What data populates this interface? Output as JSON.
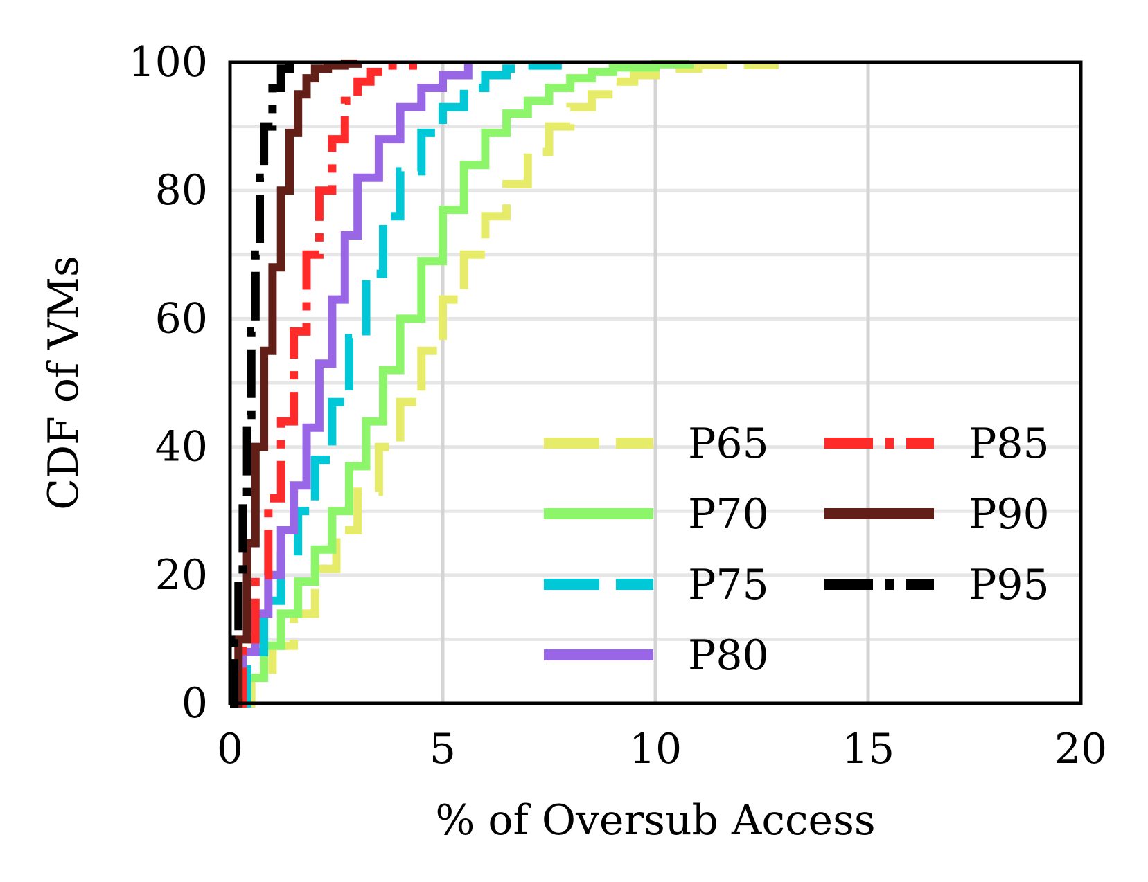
{
  "chart_data": {
    "type": "line",
    "title": "",
    "xlabel": "% of Oversub Access",
    "ylabel": "CDF of VMs",
    "xlim": [
      0,
      20
    ],
    "ylim": [
      0,
      100
    ],
    "xticks": [
      0,
      5,
      10,
      15,
      20
    ],
    "yticks": [
      0,
      20,
      40,
      60,
      80,
      100
    ],
    "x_grid": [
      5,
      10,
      15
    ],
    "y_grid": [
      10,
      20,
      30,
      40,
      50,
      60,
      70,
      80,
      90
    ],
    "legend": {
      "placement": "lower-right",
      "columns": 2
    },
    "series": [
      {
        "name": "P65",
        "color": "#e6ec6a",
        "style": "dashed",
        "x": [
          0,
          0.5,
          1,
          1.5,
          2,
          2.5,
          3,
          3.5,
          4,
          4.5,
          5,
          5.5,
          6,
          6.5,
          7,
          7.5,
          8,
          8.5,
          9,
          9.5,
          10,
          11,
          12.8
        ],
        "y": [
          0,
          4,
          9,
          14,
          21,
          27,
          33,
          40,
          47,
          55,
          63,
          70,
          76,
          81,
          86,
          90,
          93,
          95,
          97,
          98,
          99,
          99.6,
          100
        ]
      },
      {
        "name": "P70",
        "color": "#8cf56a",
        "style": "solid",
        "x": [
          0,
          0.4,
          0.8,
          1.2,
          1.6,
          2,
          2.4,
          2.8,
          3.2,
          3.6,
          4,
          4.5,
          5,
          5.5,
          6,
          6.5,
          7,
          7.5,
          8,
          8.5,
          9,
          10,
          10.8
        ],
        "y": [
          0,
          4,
          9,
          14,
          19,
          24,
          30,
          37,
          44,
          52,
          60,
          69,
          77,
          84,
          89,
          92,
          94,
          96,
          97.5,
          98.5,
          99.2,
          99.7,
          100
        ]
      },
      {
        "name": "P75",
        "color": "#00c8d6",
        "style": "dashed",
        "x": [
          0,
          0.4,
          0.8,
          1.2,
          1.6,
          2,
          2.4,
          2.8,
          3.2,
          3.6,
          4,
          4.5,
          5,
          5.5,
          6,
          6.5,
          7,
          7.7
        ],
        "y": [
          0,
          8,
          16,
          23,
          30,
          38,
          47,
          57,
          67,
          76,
          83,
          89,
          93,
          96,
          98,
          99,
          99.5,
          100
        ]
      },
      {
        "name": "P80",
        "color": "#9966e6",
        "style": "solid",
        "x": [
          0,
          0.3,
          0.6,
          0.9,
          1.2,
          1.5,
          1.8,
          2.1,
          2.4,
          2.7,
          3,
          3.5,
          4,
          4.5,
          5,
          5.6
        ],
        "y": [
          0,
          8,
          14,
          20,
          27,
          34,
          43,
          53,
          63,
          73,
          82,
          88,
          93,
          96,
          98,
          100
        ]
      },
      {
        "name": "P85",
        "color": "#ff2b2b",
        "style": "dashdot",
        "x": [
          0,
          0.3,
          0.6,
          0.9,
          1.2,
          1.5,
          1.8,
          2.1,
          2.4,
          2.7,
          3,
          3.3,
          3.6,
          4.3
        ],
        "y": [
          0,
          10,
          20,
          32,
          44,
          58,
          70,
          80,
          88,
          94,
          97,
          98.5,
          99.5,
          100
        ]
      },
      {
        "name": "P90",
        "color": "#621f18",
        "style": "solid",
        "x": [
          0,
          0.2,
          0.4,
          0.6,
          0.8,
          1,
          1.2,
          1.4,
          1.6,
          1.8,
          2,
          2.3,
          2.7,
          3
        ],
        "y": [
          0,
          10,
          25,
          40,
          55,
          68,
          80,
          89,
          95,
          97.5,
          99,
          99.5,
          99.8,
          100
        ]
      },
      {
        "name": "P95",
        "color": "#000000",
        "style": "dashdot",
        "x": [
          0,
          0.1,
          0.2,
          0.3,
          0.4,
          0.5,
          0.6,
          0.7,
          0.8,
          1,
          1.2,
          1.4
        ],
        "y": [
          0,
          10,
          20,
          32,
          45,
          58,
          70,
          82,
          90,
          96,
          99,
          100
        ]
      }
    ]
  }
}
